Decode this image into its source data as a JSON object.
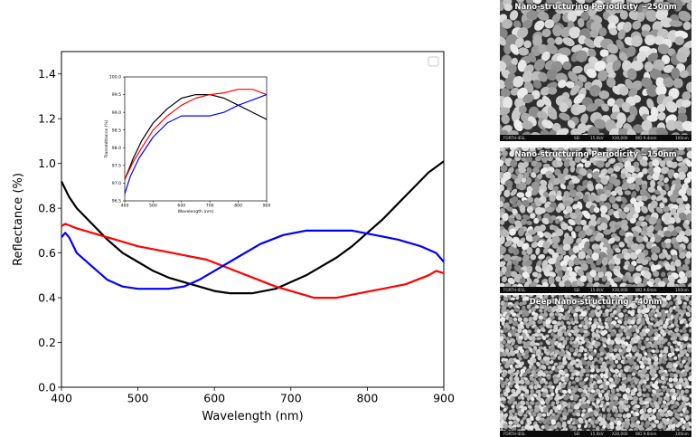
{
  "chart_data": {
    "type": "line",
    "xlabel": "Wavelength (nm)",
    "ylabel": "Reflectance (%)",
    "xlim": [
      400,
      900
    ],
    "ylim": [
      0.0,
      1.5
    ],
    "xticks": [
      "400",
      "500",
      "600",
      "700",
      "800",
      "900"
    ],
    "yticks": [
      "0.0",
      "0.2",
      "0.4",
      "0.6",
      "0.8",
      "1.0",
      "1.2",
      "1.4"
    ],
    "legend": "top-right, empty",
    "grid": false,
    "series": [
      {
        "color": "#000000",
        "x": [
          400,
          410,
          420,
          440,
          460,
          480,
          500,
          520,
          540,
          560,
          580,
          600,
          620,
          650,
          680,
          700,
          720,
          740,
          760,
          780,
          800,
          820,
          840,
          860,
          880,
          900
        ],
        "y": [
          0.92,
          0.85,
          0.8,
          0.73,
          0.66,
          0.6,
          0.56,
          0.52,
          0.49,
          0.47,
          0.45,
          0.43,
          0.42,
          0.42,
          0.44,
          0.47,
          0.5,
          0.54,
          0.58,
          0.63,
          0.69,
          0.75,
          0.82,
          0.89,
          0.96,
          1.01
        ]
      },
      {
        "color": "#ff0000",
        "x": [
          400,
          405,
          420,
          450,
          480,
          500,
          530,
          560,
          590,
          620,
          650,
          680,
          710,
          730,
          760,
          790,
          820,
          850,
          880,
          890,
          900
        ],
        "y": [
          0.72,
          0.73,
          0.71,
          0.68,
          0.65,
          0.63,
          0.61,
          0.59,
          0.57,
          0.53,
          0.49,
          0.45,
          0.42,
          0.4,
          0.4,
          0.42,
          0.44,
          0.46,
          0.5,
          0.52,
          0.51
        ]
      },
      {
        "color": "#0000ff",
        "x": [
          400,
          405,
          410,
          420,
          440,
          460,
          480,
          500,
          520,
          540,
          560,
          580,
          600,
          630,
          660,
          690,
          720,
          750,
          780,
          810,
          840,
          870,
          890,
          900
        ],
        "y": [
          0.67,
          0.69,
          0.67,
          0.6,
          0.54,
          0.48,
          0.45,
          0.44,
          0.44,
          0.44,
          0.45,
          0.48,
          0.52,
          0.58,
          0.64,
          0.68,
          0.7,
          0.7,
          0.7,
          0.68,
          0.66,
          0.63,
          0.6,
          0.56
        ]
      }
    ],
    "inset": {
      "type": "line",
      "xlabel": "Wavelength (nm)",
      "ylabel": "Transmittance (%)",
      "xlim": [
        400,
        900
      ],
      "ylim": [
        96.5,
        100.0
      ],
      "xticks": [
        "400",
        "500",
        "600",
        "700",
        "800",
        "900"
      ],
      "yticks": [
        "96.5",
        "97.0",
        "97.5",
        "98.0",
        "98.5",
        "99.0",
        "99.5",
        "100.0"
      ],
      "series": [
        {
          "color": "#000000",
          "x": [
            400,
            430,
            460,
            500,
            550,
            600,
            650,
            700,
            750,
            800,
            850,
            900
          ],
          "y": [
            97.1,
            97.7,
            98.2,
            98.7,
            99.1,
            99.4,
            99.5,
            99.5,
            99.4,
            99.2,
            99.0,
            98.8
          ]
        },
        {
          "color": "#ff0000",
          "x": [
            400,
            430,
            460,
            500,
            550,
            600,
            650,
            700,
            750,
            800,
            850,
            900
          ],
          "y": [
            97.1,
            97.6,
            98.0,
            98.5,
            98.9,
            99.2,
            99.4,
            99.5,
            99.55,
            99.65,
            99.65,
            99.5
          ]
        },
        {
          "color": "#0000ff",
          "x": [
            400,
            420,
            450,
            500,
            550,
            600,
            650,
            700,
            750,
            800,
            850,
            900
          ],
          "y": [
            96.7,
            97.2,
            97.7,
            98.3,
            98.7,
            98.9,
            98.9,
            98.9,
            99.0,
            99.2,
            99.35,
            99.5
          ]
        }
      ]
    }
  },
  "sem_panels": [
    {
      "title": "Nano-structuring Periodicity ~250nm",
      "footer": [
        "FORTH-IESL",
        "SEI",
        "15.0kV",
        "X30,000",
        "WD 9.4mm",
        "100nm"
      ]
    },
    {
      "title": "Nano-structuring Periodicity ~150nm",
      "footer": [
        "FORTH-IESL",
        "SEI",
        "15.0kV",
        "X30,000",
        "WD 9.6mm",
        "100nm"
      ]
    },
    {
      "title": "Deep Nano-structuring ~40nm",
      "footer": [
        "FORTH-IESL",
        "SEI",
        "15.0kV",
        "X30,000",
        "WD 9.6mm",
        "100nm"
      ]
    }
  ]
}
